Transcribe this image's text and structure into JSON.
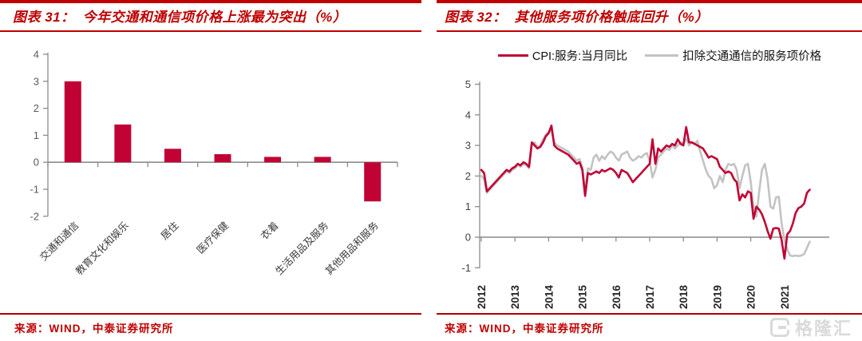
{
  "colors": {
    "accent_red": "#c00000",
    "series_red": "#c00334",
    "series_gray": "#c3c3c3",
    "axis_gray": "#8c8c8c",
    "watermark_gray": "#dadada"
  },
  "watermark": {
    "brand": "格隆汇"
  },
  "chart_data": [
    {
      "type": "bar",
      "figure_label": "图表 31：",
      "title": "今年交通和通信项价格上涨最为突出（%）",
      "source": "来源：WIND，中泰证券研究所",
      "categories": [
        "交通和通信",
        "教育文化和娱乐",
        "居住",
        "医疗保健",
        "衣着",
        "生活用品及服务",
        "其他用品和服务"
      ],
      "values": [
        3.0,
        1.4,
        0.5,
        0.3,
        0.2,
        0.2,
        -1.45
      ],
      "ylim": [
        -2,
        4
      ],
      "yticks": [
        4,
        3,
        2,
        1,
        0,
        -1,
        -2
      ],
      "bar_color": "#c00334",
      "grid": false,
      "xlabel": "",
      "ylabel": ""
    },
    {
      "type": "line",
      "figure_label": "图表 32：",
      "title": "其他服务项价格触底回升（%）",
      "source": "来源：WIND，中泰证券研究所",
      "x_monthly_start": "2012-01",
      "x_monthly_end": "2021-10",
      "x_tick_labels": [
        "2012",
        "2013",
        "2014",
        "2015",
        "2016",
        "2017",
        "2018",
        "2019",
        "2020",
        "2021"
      ],
      "ylim": [
        -1,
        5
      ],
      "yticks": [
        5,
        4,
        3,
        2,
        1,
        0,
        -1
      ],
      "grid": false,
      "legend_position": "top",
      "series": [
        {
          "name": "CPI:服务:当月同比",
          "color": "#c00334",
          "values": [
            2.2,
            2.1,
            1.5,
            1.6,
            1.7,
            1.8,
            1.9,
            2.0,
            2.1,
            2.2,
            2.15,
            2.25,
            2.3,
            2.4,
            2.35,
            2.45,
            2.4,
            2.3,
            3.1,
            3.0,
            2.9,
            2.95,
            3.1,
            3.3,
            3.4,
            3.65,
            3.0,
            2.9,
            2.85,
            2.8,
            2.75,
            2.7,
            2.6,
            2.5,
            2.4,
            2.45,
            2.2,
            1.35,
            2.1,
            2.05,
            2.1,
            2.15,
            2.1,
            2.2,
            2.15,
            2.2,
            2.25,
            2.2,
            2.1,
            1.95,
            2.2,
            2.15,
            2.1,
            1.95,
            1.8,
            1.9,
            2.0,
            2.1,
            2.2,
            2.3,
            2.4,
            3.2,
            2.4,
            2.9,
            2.8,
            2.9,
            3.0,
            2.95,
            3.05,
            3.0,
            3.2,
            3.05,
            3.0,
            3.6,
            3.1,
            3.1,
            3.05,
            3.0,
            2.95,
            2.9,
            2.75,
            2.6,
            2.65,
            2.6,
            2.55,
            2.3,
            2.2,
            2.1,
            2.15,
            2.1,
            1.9,
            1.8,
            1.2,
            1.4,
            1.3,
            1.5,
            1.45,
            0.6,
            1.0,
            0.9,
            0.75,
            0.5,
            0.2,
            -0.05,
            0.28,
            0.3,
            0.28,
            -0.1,
            -0.7,
            0.1,
            0.2,
            0.45,
            0.8,
            0.95,
            1.0,
            1.1,
            1.45,
            1.55
          ]
        },
        {
          "name": "扣除交通通信的服务项价格",
          "color": "#c3c3c3",
          "values": [
            2.0,
            1.9,
            1.45,
            1.55,
            1.65,
            1.75,
            1.85,
            1.95,
            2.05,
            2.15,
            2.1,
            2.2,
            2.25,
            2.35,
            2.3,
            2.4,
            2.35,
            2.25,
            3.0,
            3.1,
            2.95,
            3.0,
            3.2,
            3.35,
            3.45,
            3.5,
            3.1,
            3.0,
            2.95,
            2.9,
            2.85,
            2.8,
            2.7,
            2.6,
            2.5,
            2.55,
            2.3,
            1.5,
            2.25,
            2.2,
            2.6,
            2.7,
            2.5,
            2.65,
            2.55,
            2.7,
            2.8,
            2.75,
            2.6,
            2.5,
            2.7,
            2.75,
            2.8,
            2.6,
            2.5,
            2.55,
            2.65,
            2.6,
            2.7,
            2.75,
            2.5,
            1.95,
            2.2,
            2.6,
            2.7,
            2.8,
            2.9,
            2.85,
            3.0,
            2.9,
            3.0,
            3.1,
            3.05,
            3.2,
            3.0,
            3.1,
            3.05,
            3.15,
            2.8,
            2.5,
            2.2,
            2.0,
            1.9,
            1.6,
            1.7,
            2.0,
            1.8,
            2.2,
            2.4,
            2.35,
            2.4,
            2.2,
            1.6,
            2.0,
            2.35,
            2.4,
            1.8,
            1.0,
            0.67,
            1.5,
            2.2,
            2.4,
            1.9,
            1.0,
            0.93,
            1.3,
            1.32,
            0.45,
            -0.1,
            -0.4,
            -0.6,
            -0.62,
            -0.6,
            -0.62,
            -0.6,
            -0.55,
            -0.35,
            -0.15
          ]
        }
      ]
    }
  ]
}
